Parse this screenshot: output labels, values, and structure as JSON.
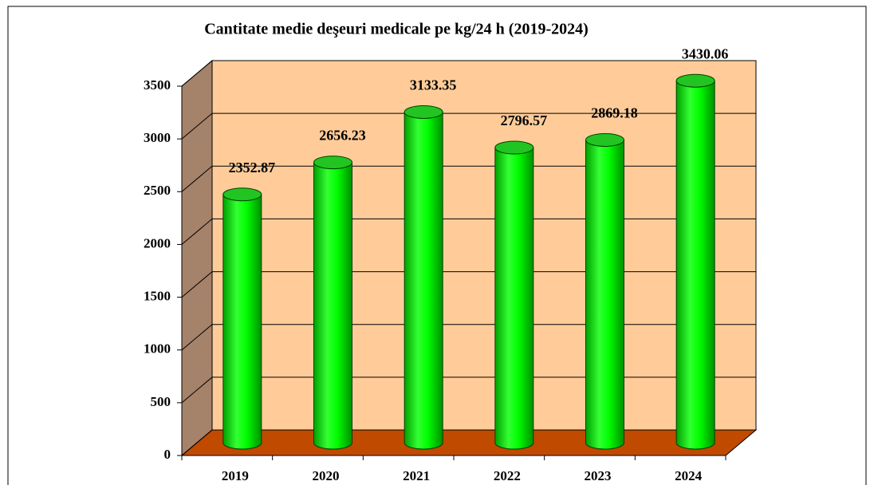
{
  "chart_data": {
    "type": "bar",
    "title": "Cantitate medie deşeuri medicale pe kg/24 h (2019-2024)",
    "categories": [
      "2019",
      "2020",
      "2021",
      "2022",
      "2023",
      "2024"
    ],
    "values": [
      2352.87,
      2656.23,
      3133.35,
      2796.57,
      2869.18,
      3430.06
    ],
    "color": "#00ff00",
    "ylim": [
      0,
      3500
    ],
    "yticks": [
      0,
      500,
      1000,
      1500,
      2000,
      2500,
      3000,
      3500
    ],
    "grid": true
  }
}
